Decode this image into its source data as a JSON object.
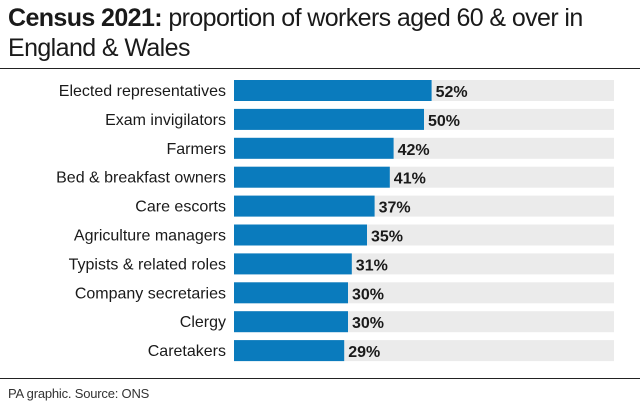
{
  "title": {
    "bold": "Census 2021:",
    "rest": " proportion of workers aged 60 & over in England & Wales"
  },
  "source": "PA graphic. Source: ONS",
  "colors": {
    "bar": "#0a7bbd",
    "track": "#ebebeb",
    "text": "#1a1a1a"
  },
  "chart_data": {
    "type": "bar",
    "orientation": "horizontal",
    "categories": [
      "Elected representatives",
      "Exam invigilators",
      "Farmers",
      "Bed & breakfast owners",
      "Care escorts",
      "Agriculture managers",
      "Typists & related roles",
      "Company secretaries",
      "Clergy",
      "Caretakers"
    ],
    "values": [
      52,
      50,
      42,
      41,
      37,
      35,
      31,
      30,
      30,
      29
    ],
    "value_labels": [
      "52%",
      "50%",
      "42%",
      "41%",
      "37%",
      "35%",
      "31%",
      "30%",
      "30%",
      "29%"
    ],
    "xlim": [
      0,
      100
    ],
    "grid": false,
    "legend": "none"
  }
}
